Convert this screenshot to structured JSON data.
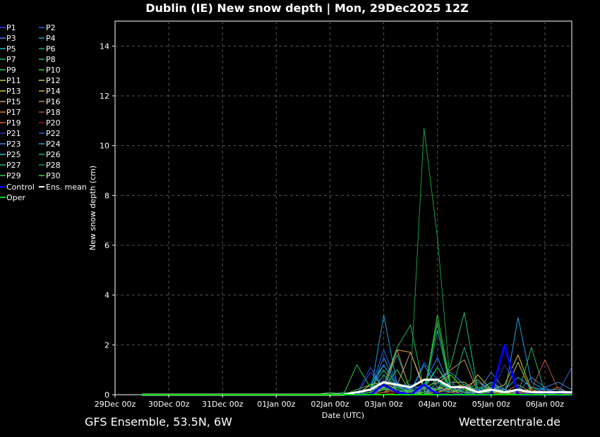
{
  "chart_data": {
    "type": "line",
    "title": "Dublin  (IE)  New snow depth | Mon, 29Dec2025 12Z",
    "xlabel": "Date (UTC)",
    "ylabel": "New snow depth (cm)",
    "footer_left": "GFS Ensemble, 53.5N, 6W",
    "footer_right": "Wetterzentrale.de",
    "ylim": [
      0,
      15
    ],
    "xlim": [
      0,
      8.5
    ],
    "yticks": [
      0,
      2,
      4,
      6,
      8,
      10,
      12,
      14
    ],
    "xticks": [
      {
        "v": 0,
        "label": "29Dec 00z"
      },
      {
        "v": 1,
        "label": "30Dec 00z"
      },
      {
        "v": 2,
        "label": "31Dec 00z"
      },
      {
        "v": 3,
        "label": "01Jan 00z"
      },
      {
        "v": 4,
        "label": "02Jan 00z"
      },
      {
        "v": 5,
        "label": "03Jan 00z"
      },
      {
        "v": 6,
        "label": "04Jan 00z"
      },
      {
        "v": 7,
        "label": "05Jan 00z"
      },
      {
        "v": 8,
        "label": "06Jan 00z"
      }
    ],
    "grid": true,
    "legend_position": "left",
    "x": [
      0.5,
      0.75,
      1.0,
      1.25,
      1.5,
      1.75,
      2.0,
      2.25,
      2.5,
      2.75,
      3.0,
      3.25,
      3.5,
      3.75,
      4.0,
      4.25,
      4.5,
      4.75,
      5.0,
      5.25,
      5.5,
      5.75,
      6.0,
      6.25,
      6.5,
      6.75,
      7.0,
      7.25,
      7.5,
      7.75,
      8.0,
      8.25,
      8.5
    ],
    "series": [
      {
        "name": "P1",
        "color": "#3a3aff",
        "values": [
          0,
          0,
          0,
          0,
          0,
          0,
          0,
          0,
          0,
          0,
          0,
          0,
          0,
          0,
          0,
          0,
          0,
          0.9,
          0.3,
          0.1,
          0,
          0.3,
          0.1,
          0,
          0,
          0,
          0.1,
          0,
          0,
          0,
          0,
          0,
          0
        ]
      },
      {
        "name": "P2",
        "color": "#1e6cff",
        "values": [
          0,
          0,
          0,
          0,
          0,
          0,
          0,
          0,
          0,
          0,
          0,
          0,
          0,
          0,
          0,
          0,
          0,
          0.2,
          1.8,
          0.4,
          0.1,
          1.3,
          0.6,
          0.1,
          0,
          0.2,
          0,
          0.1,
          0,
          0,
          0.3,
          0,
          0
        ]
      },
      {
        "name": "P3",
        "color": "#3a80ff",
        "values": [
          0,
          0,
          0,
          0,
          0,
          0,
          0,
          0,
          0,
          0,
          0,
          0,
          0,
          0,
          0,
          0,
          0,
          0.1,
          1.5,
          0.3,
          0.2,
          0.4,
          1.5,
          0.2,
          0,
          0.1,
          0,
          0,
          0,
          0.2,
          0,
          0.1,
          0
        ]
      },
      {
        "name": "P4",
        "color": "#1fa0d8",
        "values": [
          0,
          0,
          0,
          0,
          0,
          0,
          0,
          0,
          0,
          0,
          0,
          0,
          0,
          0,
          0,
          0,
          0,
          0,
          3.2,
          0.4,
          0.1,
          1.2,
          0.3,
          0.1,
          0,
          0.3,
          0.1,
          0,
          3.1,
          0.5,
          0.2,
          0,
          0
        ]
      },
      {
        "name": "P5",
        "color": "#18b4c8",
        "values": [
          0,
          0,
          0,
          0,
          0,
          0,
          0,
          0,
          0,
          0,
          0,
          0,
          0,
          0,
          0,
          0,
          0,
          0.4,
          1.2,
          0.3,
          0.1,
          0.2,
          1.1,
          0.3,
          0.1,
          0,
          0.4,
          0.1,
          0,
          0,
          0.1,
          0,
          0
        ]
      },
      {
        "name": "P6",
        "color": "#10a890",
        "values": [
          0,
          0,
          0,
          0,
          0,
          0,
          0,
          0,
          0,
          0,
          0,
          0,
          0,
          0,
          0,
          0,
          0,
          0,
          0.3,
          1.6,
          0.2,
          0,
          2.6,
          0.2,
          0.1,
          0.5,
          0.2,
          0,
          0,
          0.1,
          0.2,
          0,
          0
        ]
      },
      {
        "name": "P7",
        "color": "#14b88a",
        "values": [
          0,
          0,
          0,
          0,
          0,
          0,
          0,
          0,
          0,
          0,
          0,
          0,
          0,
          0,
          0,
          0.1,
          0,
          1.1,
          0.2,
          0.1,
          0.1,
          0.1,
          0.2,
          0.1,
          0.2,
          0.1,
          0.5,
          0.1,
          0,
          0.3,
          0.1,
          0,
          0
        ]
      },
      {
        "name": "P8",
        "color": "#22c070",
        "values": [
          0,
          0,
          0,
          0,
          0,
          0,
          0,
          0,
          0,
          0,
          0,
          0,
          0,
          0,
          0,
          0,
          0,
          0.2,
          1.0,
          0.2,
          0,
          0.3,
          0.2,
          1.2,
          3.3,
          0.2,
          0.1,
          0,
          0.3,
          0,
          0,
          0,
          0
        ]
      },
      {
        "name": "P9",
        "color": "#28c850",
        "values": [
          0,
          0,
          0,
          0,
          0,
          0,
          0,
          0,
          0,
          0,
          0,
          0,
          0,
          0,
          0,
          0,
          1.2,
          0.3,
          0.5,
          0.2,
          0.1,
          0.3,
          1.1,
          0.2,
          0.2,
          0,
          0.3,
          0.2,
          0,
          0,
          0.1,
          0,
          0
        ]
      },
      {
        "name": "P10",
        "color": "#30d030",
        "values": [
          0,
          0,
          0,
          0,
          0,
          0,
          0,
          0,
          0,
          0,
          0,
          0,
          0,
          0,
          0,
          0,
          0,
          0.2,
          0.3,
          1.0,
          0.1,
          0,
          3.2,
          0.3,
          0.1,
          0.2,
          0.1,
          0.2,
          0,
          0,
          0,
          0,
          0
        ]
      },
      {
        "name": "P11",
        "color": "#b8d040",
        "values": [
          0,
          0,
          0,
          0,
          0,
          0,
          0,
          0,
          0,
          0,
          0,
          0,
          0,
          0,
          0,
          0,
          0,
          0.1,
          0.2,
          0.2,
          0.1,
          0.1,
          0.2,
          0.5,
          0.5,
          0.1,
          0.2,
          0.1,
          1.3,
          0.1,
          0,
          0,
          0
        ]
      },
      {
        "name": "P12",
        "color": "#d8d030",
        "values": [
          0,
          0,
          0,
          0,
          0,
          0,
          0,
          0,
          0,
          0,
          0,
          0,
          0,
          0,
          0,
          0,
          0,
          0,
          0.3,
          0.1,
          0.2,
          0,
          0.1,
          0.3,
          0.4,
          0.1,
          0.3,
          0,
          0.2,
          0,
          0.1,
          0,
          0
        ]
      },
      {
        "name": "P13",
        "color": "#e0c828",
        "values": [
          0,
          0,
          0,
          0,
          0,
          0,
          0,
          0,
          0,
          0,
          0,
          0,
          0,
          0,
          0,
          0,
          0,
          0.4,
          0.5,
          0.2,
          0,
          0.1,
          0.3,
          0.2,
          0,
          0.8,
          0.2,
          0.4,
          1.6,
          0.2,
          0,
          0,
          0
        ]
      },
      {
        "name": "P14",
        "color": "#e0b030",
        "values": [
          0,
          0,
          0,
          0,
          0,
          0,
          0,
          0,
          0,
          0,
          0,
          0,
          0,
          0,
          0,
          0,
          0,
          0,
          0.4,
          1.8,
          1.7,
          0.3,
          0.5,
          0.8,
          0.2,
          0,
          0.3,
          0.1,
          0,
          0,
          0.2,
          0.1,
          0
        ]
      },
      {
        "name": "P15",
        "color": "#c8a070",
        "values": [
          0,
          0,
          0,
          0,
          0,
          0,
          0,
          0,
          0,
          0,
          0,
          0,
          0,
          0,
          0,
          0,
          0,
          0,
          0.1,
          0.4,
          1.7,
          0.2,
          0.2,
          0.1,
          0.3,
          0.6,
          0.1,
          0,
          0.1,
          0,
          0,
          0,
          0
        ]
      },
      {
        "name": "P16",
        "color": "#d08850",
        "values": [
          0,
          0,
          0,
          0,
          0,
          0,
          0,
          0,
          0,
          0,
          0,
          0,
          0,
          0,
          0,
          0,
          0,
          0.1,
          0.2,
          1.8,
          0.1,
          0.2,
          0.6,
          1.0,
          1.4,
          0.1,
          0.1,
          0.1,
          0.4,
          0.1,
          0,
          0,
          0
        ]
      },
      {
        "name": "P17",
        "color": "#e07040",
        "values": [
          0,
          0,
          0,
          0,
          0,
          0,
          0,
          0,
          0,
          0,
          0,
          0,
          0,
          0,
          0,
          0,
          0,
          0,
          0.1,
          0.2,
          0.1,
          0,
          0.1,
          0.2,
          0.1,
          0.3,
          0.2,
          0.1,
          0.1,
          0.2,
          0.1,
          0.3,
          0
        ]
      },
      {
        "name": "P18",
        "color": "#c04a30",
        "values": [
          0,
          0,
          0,
          0,
          0,
          0,
          0,
          0,
          0,
          0,
          0,
          0,
          0,
          0,
          0,
          0,
          0,
          0,
          0.2,
          0.1,
          0,
          0.1,
          0.1,
          0,
          0.1,
          0.1,
          0,
          0.1,
          0,
          0.2,
          1.4,
          0.2,
          0
        ]
      },
      {
        "name": "P19",
        "color": "#e05030",
        "values": [
          0,
          0,
          0,
          0,
          0,
          0,
          0,
          0,
          0,
          0,
          0,
          0,
          0,
          0,
          0,
          0,
          0,
          0,
          0.1,
          0,
          0.1,
          0,
          0,
          0.1,
          0,
          0,
          0.1,
          0,
          0.1,
          0,
          0,
          0.1,
          0
        ]
      },
      {
        "name": "P20",
        "color": "#a01810",
        "values": [
          0,
          0,
          0,
          0,
          0,
          0,
          0,
          0,
          0,
          0,
          0,
          0,
          0,
          0,
          0,
          0,
          0,
          0,
          0,
          0.1,
          0,
          0,
          0,
          0,
          0.1,
          0,
          0,
          0,
          0,
          0,
          0.2,
          0,
          0
        ]
      },
      {
        "name": "P21",
        "color": "#2830c0",
        "values": [
          0,
          0,
          0,
          0,
          0,
          0,
          0,
          0,
          0,
          0,
          0,
          0,
          0,
          0,
          0,
          0,
          0,
          1.1,
          0.3,
          0.2,
          0,
          0.2,
          0.1,
          0,
          0.1,
          0.2,
          0,
          1.2,
          0.3,
          0,
          0,
          0,
          0
        ]
      },
      {
        "name": "P22",
        "color": "#3060d0",
        "values": [
          0,
          0,
          0,
          0,
          0,
          0,
          0,
          0,
          0,
          0,
          0,
          0,
          0,
          0,
          0,
          0,
          0,
          0,
          0.6,
          0.4,
          0.2,
          0,
          0.3,
          0.5,
          0.1,
          0,
          0.3,
          0.2,
          0,
          0.1,
          0.2,
          0.1,
          1.1
        ]
      },
      {
        "name": "P23",
        "color": "#4080e0",
        "values": [
          0,
          0,
          0,
          0,
          0,
          0,
          0,
          0,
          0,
          0,
          0,
          0,
          0,
          0,
          0,
          0,
          0,
          0,
          0.2,
          0.5,
          0.2,
          0.1,
          0.2,
          0.3,
          0.1,
          0.1,
          0.9,
          0.2,
          0.1,
          0.7,
          0.3,
          0.5,
          0.2
        ]
      },
      {
        "name": "P24",
        "color": "#20a0e0",
        "values": [
          0,
          0,
          0,
          0,
          0,
          0,
          0,
          0,
          0,
          0,
          0,
          0,
          0,
          0,
          0,
          0,
          0,
          0.2,
          1.2,
          0.3,
          0.4,
          0.2,
          0.6,
          0.9,
          0.4,
          0.2,
          0.5,
          0.2,
          0.7,
          0.3,
          0.2,
          0.2,
          0.1
        ]
      },
      {
        "name": "P25",
        "color": "#30b8c8",
        "values": [
          0,
          0,
          0,
          0,
          0,
          0,
          0,
          0,
          0,
          0,
          0,
          0,
          0,
          0,
          0,
          0,
          0,
          0,
          0.8,
          0.2,
          0.1,
          0,
          0.5,
          0.2,
          0.1,
          0,
          0.3,
          0.1,
          0,
          0,
          0,
          0,
          0
        ]
      },
      {
        "name": "P26",
        "color": "#18b090",
        "values": [
          0,
          0,
          0,
          0,
          0,
          0,
          0,
          0,
          0,
          0,
          0,
          0,
          0,
          0,
          0,
          0,
          0,
          0,
          0.2,
          0.3,
          0.1,
          0.4,
          0.2,
          0.1,
          1.9,
          0.2,
          0.1,
          0.1,
          0.2,
          0.1,
          0,
          0,
          0
        ]
      },
      {
        "name": "P27",
        "color": "#20b868",
        "values": [
          0,
          0,
          0,
          0,
          0,
          0,
          0,
          0,
          0,
          0,
          0,
          0,
          0,
          0,
          0,
          0,
          0,
          0,
          0.4,
          1.9,
          2.8,
          0.2,
          0.6,
          0.2,
          0.1,
          0.3,
          0.2,
          0.1,
          0,
          1.9,
          0.1,
          0,
          0
        ]
      },
      {
        "name": "P28",
        "color": "#10a040",
        "values": [
          0,
          0,
          0,
          0,
          0,
          0,
          0,
          0,
          0,
          0,
          0,
          0,
          0,
          0,
          0,
          0,
          0,
          0,
          0.2,
          0.2,
          0.6,
          10.7,
          6.3,
          0.2,
          0.1,
          0.3,
          0.2,
          0.1,
          0.2,
          0.1,
          0,
          0,
          0
        ]
      },
      {
        "name": "P29",
        "color": "#30c848",
        "values": [
          0,
          0,
          0,
          0,
          0,
          0,
          0,
          0,
          0,
          0,
          0,
          0,
          0,
          0,
          0.1,
          0,
          0.2,
          0.4,
          0.2,
          0.3,
          0.1,
          0.1,
          2.9,
          0.2,
          0.1,
          0,
          0.2,
          0,
          0,
          0,
          0,
          0,
          0
        ]
      },
      {
        "name": "P30",
        "color": "#38d828",
        "values": [
          0,
          0,
          0,
          0,
          0,
          0,
          0,
          0,
          0,
          0,
          0,
          0,
          0,
          0,
          0,
          0,
          0,
          0.1,
          0.3,
          0.1,
          0.2,
          0,
          0.2,
          0.8,
          0.2,
          0.1,
          0.1,
          0.1,
          0,
          0,
          0,
          0,
          0
        ]
      },
      {
        "name": "Control",
        "color": "#0000ff",
        "width": 3,
        "values": [
          0,
          0,
          0,
          0,
          0,
          0,
          0,
          0,
          0,
          0,
          0,
          0,
          0,
          0,
          0,
          0,
          0,
          0,
          0.4,
          0.1,
          0,
          0.4,
          0,
          0,
          0,
          0,
          0,
          2.0,
          0,
          0,
          0,
          0,
          0
        ]
      },
      {
        "name": "Ens. mean",
        "color": "#ffffff",
        "width": 3,
        "values": [
          0,
          0,
          0,
          0,
          0,
          0,
          0,
          0,
          0,
          0,
          0,
          0,
          0,
          0,
          0,
          0,
          0.1,
          0.2,
          0.5,
          0.4,
          0.3,
          0.6,
          0.6,
          0.3,
          0.3,
          0.1,
          0.2,
          0.1,
          0.2,
          0.1,
          0.1,
          0.1,
          0.1
        ]
      },
      {
        "name": "Oper",
        "color": "#00e000",
        "width": 2,
        "values": [
          0,
          0,
          0,
          0,
          0,
          0,
          0,
          0,
          0,
          0,
          0,
          0,
          0,
          0,
          0,
          0,
          0,
          0,
          0,
          0,
          0,
          0,
          0,
          0,
          0,
          0,
          0,
          0,
          0,
          0,
          0,
          0,
          0
        ]
      }
    ]
  }
}
